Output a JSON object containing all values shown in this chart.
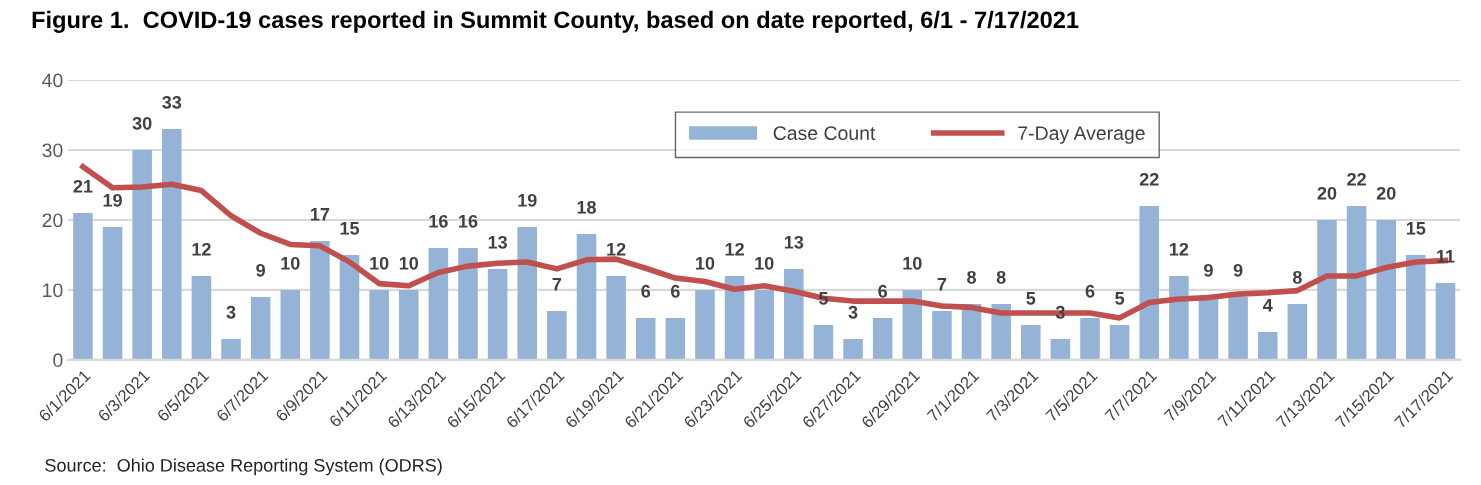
{
  "chart_data": {
    "type": "bar",
    "title": "Figure 1.  COVID-19 cases reported in Summit County, based on date reported, 6/1 - 7/17/2021",
    "categories": [
      "6/1/2021",
      null,
      "6/3/2021",
      null,
      "6/5/2021",
      null,
      "6/7/2021",
      null,
      "6/9/2021",
      null,
      "6/11/2021",
      null,
      "6/13/2021",
      null,
      "6/15/2021",
      null,
      "6/17/2021",
      null,
      "6/19/2021",
      null,
      "6/21/2021",
      null,
      "6/23/2021",
      null,
      "6/25/2021",
      null,
      "6/27/2021",
      null,
      "6/29/2021",
      null,
      "7/1/2021",
      null,
      "7/3/2021",
      null,
      "7/5/2021",
      null,
      "7/7/2021",
      null,
      "7/9/2021",
      null,
      "7/11/2021",
      null,
      "7/13/2021",
      null,
      "7/15/2021",
      null,
      "7/17/2021"
    ],
    "series": [
      {
        "name": "Case Count",
        "color": "#95b3d7",
        "data_labels": true,
        "values": [
          21,
          19,
          30,
          33,
          12,
          3,
          9,
          10,
          17,
          15,
          10,
          10,
          16,
          16,
          13,
          19,
          7,
          18,
          12,
          6,
          6,
          10,
          12,
          10,
          13,
          5,
          3,
          6,
          10,
          7,
          8,
          8,
          5,
          3,
          6,
          5,
          22,
          12,
          9,
          9,
          4,
          8,
          20,
          22,
          20,
          15,
          11
        ]
      },
      {
        "name": "7-Day Average",
        "type": "line",
        "color": "#c0504d",
        "values": [
          27.6,
          24.6,
          24.7,
          25.1,
          24.2,
          20.6,
          18.1,
          16.5,
          16.3,
          14.0,
          10.9,
          10.6,
          12.5,
          13.4,
          13.8,
          14.0,
          13.0,
          14.3,
          14.4,
          13.1,
          11.7,
          11.2,
          10.1,
          10.6,
          9.8,
          8.8,
          8.4,
          8.4,
          8.4,
          7.7,
          7.5,
          6.7,
          6.7,
          6.7,
          6.7,
          6.0,
          8.2,
          8.7,
          8.9,
          9.4,
          9.6,
          9.9,
          12.0,
          12.0,
          13.2,
          14.0,
          14.2
        ]
      }
    ],
    "ylim": [
      0,
      40
    ],
    "yticks": [
      0,
      10,
      20,
      30,
      40
    ],
    "grid": "y",
    "legend": "top",
    "marker": "none",
    "line_style": "solid",
    "annotations": [
      "Source:  Ohio Disease Reporting System (ODRS)"
    ]
  }
}
